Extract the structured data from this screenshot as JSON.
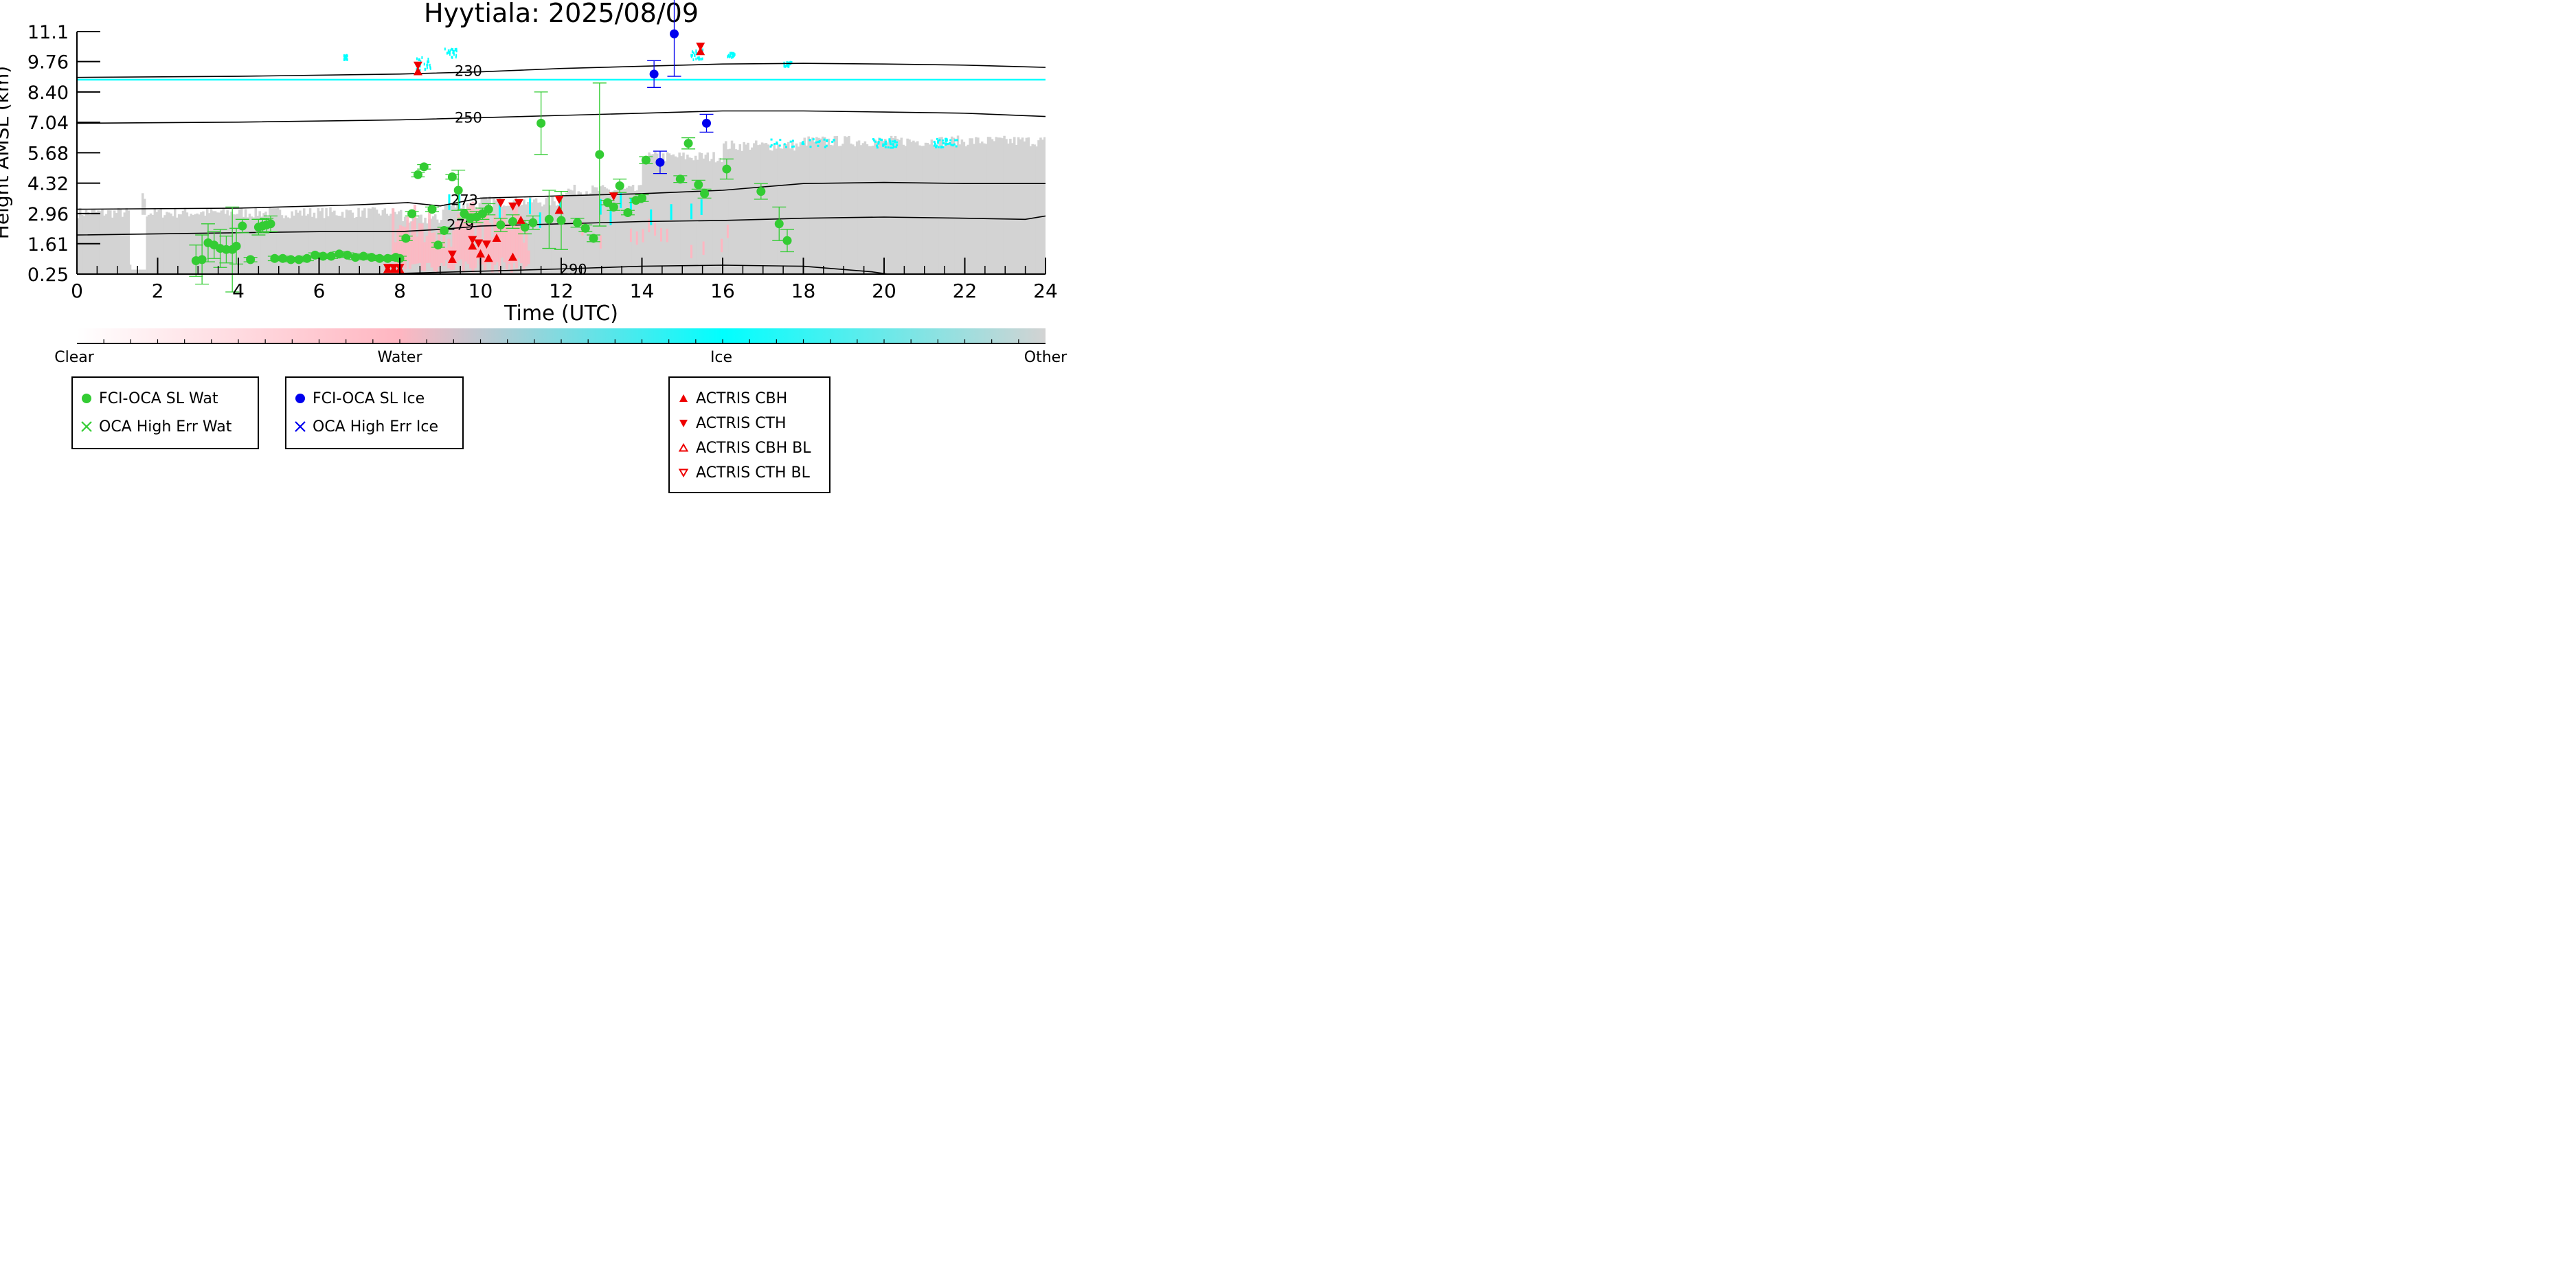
{
  "chart_data": {
    "type": "scatter",
    "title": "Hyytiala: 2025/08/09",
    "xlabel": "Time (UTC)",
    "ylabel": "Height AMSL (km)",
    "xlim": [
      0,
      24
    ],
    "ylim": [
      0.25,
      11.1
    ],
    "xticks": [
      0,
      2,
      4,
      6,
      8,
      10,
      12,
      14,
      16,
      18,
      20,
      22,
      24
    ],
    "xtick_labels": [
      "0",
      "2",
      "4",
      "6",
      "8",
      "10",
      "12",
      "14",
      "16",
      "18",
      "20",
      "22",
      "24"
    ],
    "yticks": [
      0.25,
      1.61,
      2.96,
      4.32,
      5.68,
      7.04,
      8.4,
      9.76,
      11.1
    ],
    "ytick_labels": [
      "0.25",
      "1.61",
      "2.96",
      "4.32",
      "5.68",
      "7.04",
      "8.40",
      "9.76",
      "11.1"
    ],
    "colors": {
      "clear": "#ffffff",
      "water": "#ffb6c1",
      "ice": "#00ffff",
      "other": "#d3d3d3",
      "wat": "#33cc33",
      "ice_marker": "#0000ee",
      "actris": "#ee0000",
      "contour": "#000000"
    },
    "colorbar": {
      "labels": [
        "Clear",
        "Water",
        "Ice",
        "Other"
      ]
    },
    "series": [
      {
        "name": "FCI-OCA SL Wat",
        "marker": "circle",
        "points": [
          {
            "x": 2.95,
            "y": 0.85,
            "err": 0.7
          },
          {
            "x": 3.1,
            "y": 0.9,
            "err": 1.1
          },
          {
            "x": 3.25,
            "y": 1.65,
            "err": 0.85
          },
          {
            "x": 3.4,
            "y": 1.55,
            "err": 0.6
          },
          {
            "x": 3.55,
            "y": 1.4,
            "err": 0.85
          },
          {
            "x": 3.7,
            "y": 1.35,
            "err": 0.6
          },
          {
            "x": 3.85,
            "y": 1.35,
            "err": 1.9
          },
          {
            "x": 3.95,
            "y": 1.5,
            "err": 0.8
          },
          {
            "x": 4.1,
            "y": 2.4,
            "err": 0.3
          },
          {
            "x": 4.3,
            "y": 0.9,
            "err": 0.1
          },
          {
            "x": 4.5,
            "y": 2.35,
            "err": 0.35
          },
          {
            "x": 4.6,
            "y": 2.4,
            "err": 0.3
          },
          {
            "x": 4.7,
            "y": 2.45,
            "err": 0.3
          },
          {
            "x": 4.8,
            "y": 2.5,
            "err": 0.35
          },
          {
            "x": 4.9,
            "y": 0.95,
            "err": 0.1
          },
          {
            "x": 5.1,
            "y": 0.95,
            "err": 0.1
          },
          {
            "x": 5.3,
            "y": 0.9,
            "err": 0.1
          },
          {
            "x": 5.5,
            "y": 0.9,
            "err": 0.1
          },
          {
            "x": 5.7,
            "y": 0.95,
            "err": 0.1
          },
          {
            "x": 5.9,
            "y": 1.1,
            "err": 0.1
          },
          {
            "x": 6.1,
            "y": 1.05,
            "err": 0.1
          },
          {
            "x": 6.3,
            "y": 1.05,
            "err": 0.1
          },
          {
            "x": 6.5,
            "y": 1.15,
            "err": 0.1
          },
          {
            "x": 6.7,
            "y": 1.1,
            "err": 0.1
          },
          {
            "x": 6.9,
            "y": 1.0,
            "err": 0.1
          },
          {
            "x": 7.1,
            "y": 1.05,
            "err": 0.1
          },
          {
            "x": 7.3,
            "y": 1.0,
            "err": 0.1
          },
          {
            "x": 7.5,
            "y": 0.95,
            "err": 0.1
          },
          {
            "x": 7.7,
            "y": 0.95,
            "err": 0.1
          },
          {
            "x": 7.9,
            "y": 1.0,
            "err": 0.1
          },
          {
            "x": 8.0,
            "y": 0.95,
            "err": 0.1
          },
          {
            "x": 8.15,
            "y": 1.85,
            "err": 0.1
          },
          {
            "x": 8.3,
            "y": 2.95,
            "err": 0.1
          },
          {
            "x": 8.45,
            "y": 4.7,
            "err": 0.1
          },
          {
            "x": 8.6,
            "y": 5.05,
            "err": 0.1
          },
          {
            "x": 8.8,
            "y": 3.15,
            "err": 0.1
          },
          {
            "x": 8.95,
            "y": 1.55,
            "err": 0.1
          },
          {
            "x": 9.1,
            "y": 2.2,
            "err": 0.15
          },
          {
            "x": 9.3,
            "y": 4.6,
            "err": 0.1
          },
          {
            "x": 9.45,
            "y": 4.0,
            "err": 0.9
          },
          {
            "x": 9.6,
            "y": 2.95,
            "err": 0.2
          },
          {
            "x": 9.75,
            "y": 2.75,
            "err": 0.2
          },
          {
            "x": 9.9,
            "y": 2.8,
            "err": 0.25
          },
          {
            "x": 10.05,
            "y": 2.95,
            "err": 0.25
          },
          {
            "x": 10.2,
            "y": 3.15,
            "err": 0.25
          },
          {
            "x": 10.5,
            "y": 2.45,
            "err": 0.3
          },
          {
            "x": 10.8,
            "y": 2.6,
            "err": 0.3
          },
          {
            "x": 11.1,
            "y": 2.35,
            "err": 0.3
          },
          {
            "x": 11.3,
            "y": 2.55,
            "err": 0.3
          },
          {
            "x": 11.5,
            "y": 7.0,
            "err": 1.4
          },
          {
            "x": 11.7,
            "y": 2.7,
            "err": 1.3
          },
          {
            "x": 12.0,
            "y": 2.65,
            "err": 1.3
          },
          {
            "x": 12.4,
            "y": 2.55,
            "err": 0.2
          },
          {
            "x": 12.6,
            "y": 2.3,
            "err": 0.15
          },
          {
            "x": 12.8,
            "y": 1.85,
            "err": 0.15
          },
          {
            "x": 12.95,
            "y": 5.6,
            "err": 3.2
          },
          {
            "x": 13.15,
            "y": 3.45,
            "err": 0.1
          },
          {
            "x": 13.3,
            "y": 3.25,
            "err": 0.15
          },
          {
            "x": 13.45,
            "y": 4.2,
            "err": 0.3
          },
          {
            "x": 13.65,
            "y": 3.0,
            "err": 0.1
          },
          {
            "x": 13.85,
            "y": 3.55,
            "err": 0.1
          },
          {
            "x": 14.0,
            "y": 3.65,
            "err": 0.15
          },
          {
            "x": 14.1,
            "y": 5.35,
            "err": 0.15
          },
          {
            "x": 14.95,
            "y": 4.5,
            "err": 0.15
          },
          {
            "x": 15.15,
            "y": 6.1,
            "err": 0.25
          },
          {
            "x": 15.4,
            "y": 4.25,
            "err": 0.2
          },
          {
            "x": 15.55,
            "y": 3.85,
            "err": 0.2
          },
          {
            "x": 16.1,
            "y": 4.95,
            "err": 0.45
          },
          {
            "x": 16.95,
            "y": 3.95,
            "err": 0.35
          },
          {
            "x": 17.4,
            "y": 2.5,
            "err": 0.75
          },
          {
            "x": 17.6,
            "y": 1.75,
            "err": 0.5
          }
        ]
      },
      {
        "name": "FCI-OCA SL Ice",
        "marker": "circle",
        "points": [
          {
            "x": 14.3,
            "y": 9.2,
            "err": 0.6
          },
          {
            "x": 14.8,
            "y": 11.0,
            "err": 1.9
          },
          {
            "x": 14.45,
            "y": 5.25,
            "err": 0.5
          },
          {
            "x": 15.6,
            "y": 7.0,
            "err": 0.4
          }
        ]
      },
      {
        "name": "OCA High Err Wat",
        "marker": "x",
        "points": []
      },
      {
        "name": "OCA High Err Ice",
        "marker": "x",
        "points": []
      },
      {
        "name": "ACTRIS CBH",
        "marker": "triangle-up",
        "points": [
          {
            "x": 7.7,
            "y": 0.45
          },
          {
            "x": 7.85,
            "y": 0.45
          },
          {
            "x": 8.0,
            "y": 0.45
          },
          {
            "x": 9.3,
            "y": 0.9
          },
          {
            "x": 9.8,
            "y": 1.5
          },
          {
            "x": 10.0,
            "y": 1.15
          },
          {
            "x": 10.2,
            "y": 0.95
          },
          {
            "x": 10.4,
            "y": 1.85
          },
          {
            "x": 10.8,
            "y": 1.0
          },
          {
            "x": 11.0,
            "y": 2.65
          },
          {
            "x": 11.95,
            "y": 3.1
          },
          {
            "x": 8.45,
            "y": 9.3
          },
          {
            "x": 15.45,
            "y": 10.2
          }
        ]
      },
      {
        "name": "ACTRIS CTH",
        "marker": "triangle-down",
        "points": [
          {
            "x": 7.7,
            "y": 0.55
          },
          {
            "x": 7.85,
            "y": 0.55
          },
          {
            "x": 8.0,
            "y": 0.55
          },
          {
            "x": 9.3,
            "y": 1.15
          },
          {
            "x": 9.8,
            "y": 1.8
          },
          {
            "x": 9.95,
            "y": 1.65
          },
          {
            "x": 10.15,
            "y": 1.6
          },
          {
            "x": 10.5,
            "y": 3.45
          },
          {
            "x": 10.8,
            "y": 3.3
          },
          {
            "x": 10.95,
            "y": 3.45
          },
          {
            "x": 11.95,
            "y": 3.6
          },
          {
            "x": 13.3,
            "y": 3.75
          },
          {
            "x": 8.45,
            "y": 9.6
          },
          {
            "x": 15.45,
            "y": 10.45
          }
        ]
      },
      {
        "name": "ACTRIS CBH BL",
        "marker": "triangle-up-open",
        "points": []
      },
      {
        "name": "ACTRIS CTH BL",
        "marker": "triangle-down-open",
        "points": []
      }
    ],
    "contours": [
      {
        "label": "230",
        "points": [
          [
            0,
            9.05
          ],
          [
            4,
            9.1
          ],
          [
            8,
            9.2
          ],
          [
            10,
            9.3
          ],
          [
            12,
            9.45
          ],
          [
            14,
            9.55
          ],
          [
            16,
            9.65
          ],
          [
            18,
            9.68
          ],
          [
            20,
            9.65
          ],
          [
            22,
            9.6
          ],
          [
            24,
            9.5
          ]
        ]
      },
      {
        "label": "250",
        "points": [
          [
            0,
            7.0
          ],
          [
            4,
            7.05
          ],
          [
            8,
            7.15
          ],
          [
            10,
            7.25
          ],
          [
            12,
            7.35
          ],
          [
            14,
            7.45
          ],
          [
            16,
            7.55
          ],
          [
            18,
            7.55
          ],
          [
            20,
            7.5
          ],
          [
            22,
            7.45
          ],
          [
            24,
            7.3
          ]
        ]
      },
      {
        "label": "273",
        "points": [
          [
            0,
            3.15
          ],
          [
            4,
            3.2
          ],
          [
            7,
            3.35
          ],
          [
            8.2,
            3.45
          ],
          [
            9,
            3.3
          ],
          [
            10,
            3.65
          ],
          [
            12,
            3.75
          ],
          [
            14,
            3.85
          ],
          [
            16,
            4.0
          ],
          [
            18,
            4.3
          ],
          [
            20,
            4.35
          ],
          [
            22,
            4.3
          ],
          [
            24,
            4.3
          ]
        ]
      },
      {
        "label": "279",
        "points": [
          [
            0,
            2.0
          ],
          [
            4,
            2.1
          ],
          [
            6,
            2.15
          ],
          [
            8,
            2.15
          ],
          [
            9,
            2.25
          ],
          [
            10,
            2.4
          ],
          [
            12,
            2.5
          ],
          [
            14,
            2.6
          ],
          [
            16,
            2.65
          ],
          [
            18,
            2.75
          ],
          [
            20,
            2.8
          ],
          [
            22,
            2.75
          ],
          [
            23.5,
            2.7
          ],
          [
            24,
            2.85
          ]
        ]
      },
      {
        "label": "290",
        "points": [
          [
            8,
            0.28
          ],
          [
            10,
            0.38
          ],
          [
            12,
            0.48
          ],
          [
            14,
            0.6
          ],
          [
            16,
            0.65
          ],
          [
            18,
            0.6
          ],
          [
            19.7,
            0.35
          ],
          [
            20.1,
            0.25
          ]
        ]
      }
    ]
  },
  "legends": [
    {
      "items": [
        "FCI-OCA SL Wat",
        "OCA High Err Wat"
      ]
    },
    {
      "items": [
        "FCI-OCA SL Ice",
        "OCA High Err Ice"
      ]
    },
    {
      "items": [
        "ACTRIS CBH",
        "ACTRIS CTH",
        "ACTRIS CBH BL",
        "ACTRIS CTH BL"
      ]
    }
  ]
}
